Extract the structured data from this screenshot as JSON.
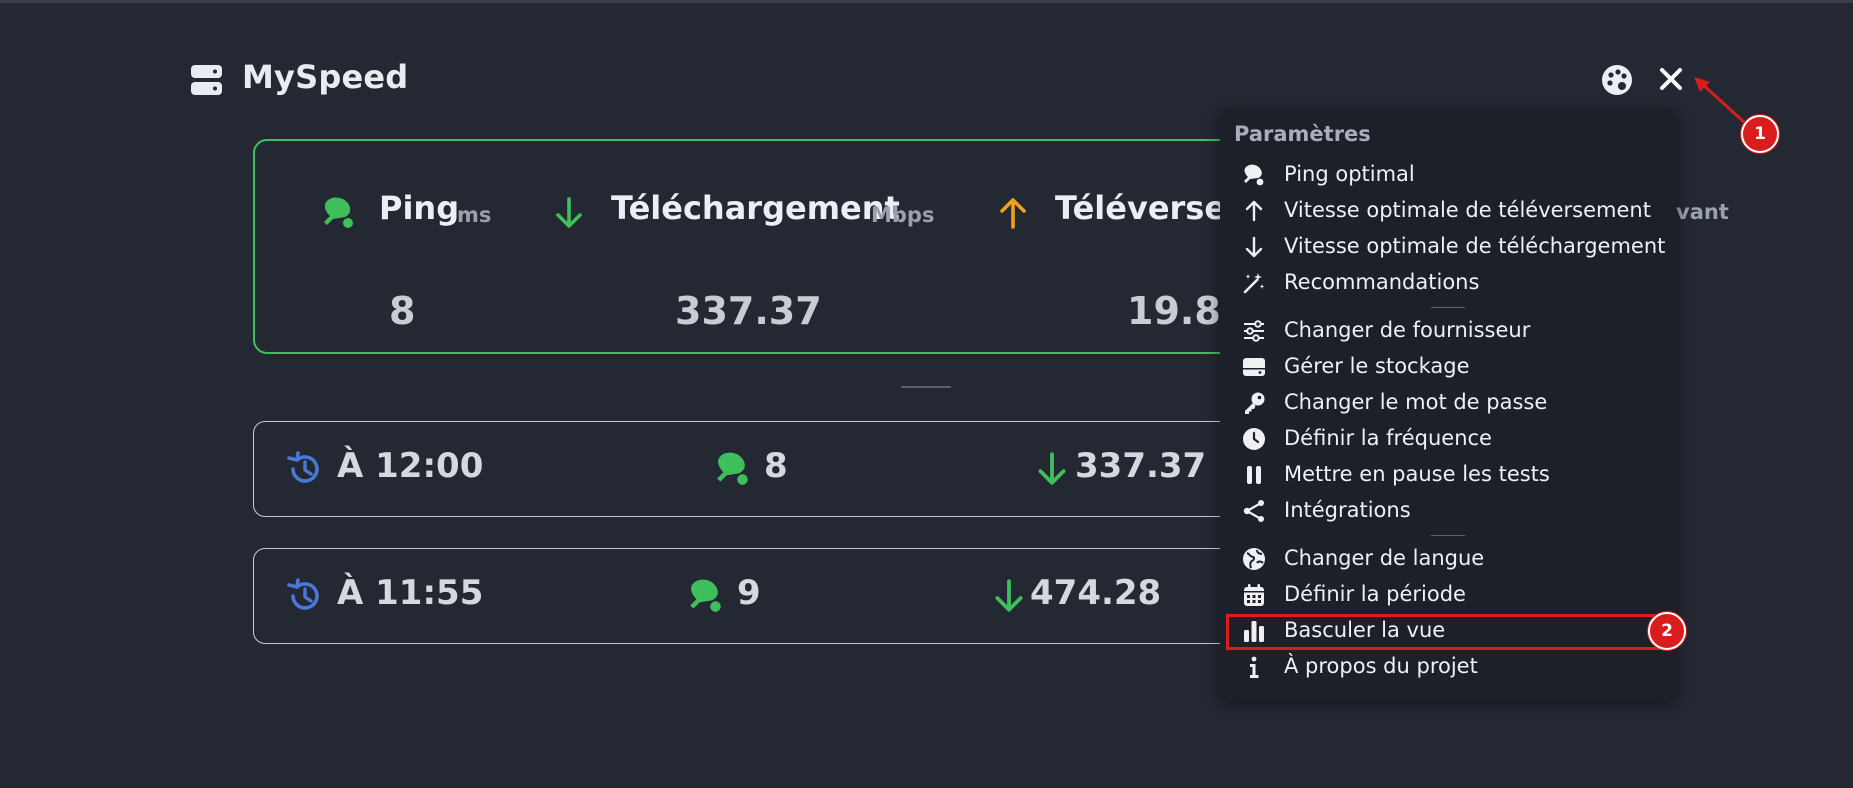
{
  "app": {
    "title": "MySpeed"
  },
  "stats": {
    "ping": {
      "label": "Ping",
      "unit": "ms",
      "value": "8"
    },
    "download": {
      "label": "Téléchargement",
      "unit": "Mbps",
      "value": "337.37"
    },
    "upload": {
      "label": "Téléversem",
      "value": "19.8"
    },
    "partial_text": "vant"
  },
  "history": [
    {
      "time": "À 12:00",
      "ping": "8",
      "download": "337.37"
    },
    {
      "time": "À 11:55",
      "ping": "9",
      "download": "474.28"
    }
  ],
  "menu": {
    "title": "Paramètres",
    "items": [
      {
        "label": "Ping optimal",
        "icon": "ping-pong-icon"
      },
      {
        "label": "Vitesse optimale de téléversement",
        "icon": "arrow-up-icon"
      },
      {
        "label": "Vitesse optimale de téléchargement",
        "icon": "arrow-down-icon"
      },
      {
        "label": "Recommandations",
        "icon": "magic-wand-icon"
      },
      {
        "label": "Changer de fournisseur",
        "icon": "sliders-icon"
      },
      {
        "label": "Gérer le stockage",
        "icon": "hard-drive-icon"
      },
      {
        "label": "Changer le mot de passe",
        "icon": "key-icon"
      },
      {
        "label": "Définir la fréquence",
        "icon": "clock-icon"
      },
      {
        "label": "Mettre en pause les tests",
        "icon": "pause-icon"
      },
      {
        "label": "Intégrations",
        "icon": "integrations-icon"
      },
      {
        "label": "Changer de langue",
        "icon": "globe-icon"
      },
      {
        "label": "Définir la période",
        "icon": "calendar-icon"
      },
      {
        "label": "Basculer la vue",
        "icon": "bar-chart-icon"
      },
      {
        "label": "À propos du projet",
        "icon": "info-icon"
      }
    ]
  },
  "annotations": {
    "badge_1": "1",
    "badge_2": "2"
  },
  "colors": {
    "background": "#242833",
    "accent_green": "#3fbf5c",
    "upload_orange": "#f0a020",
    "history_blue": "#4a78d6",
    "annotation_red": "#d91c1c"
  }
}
